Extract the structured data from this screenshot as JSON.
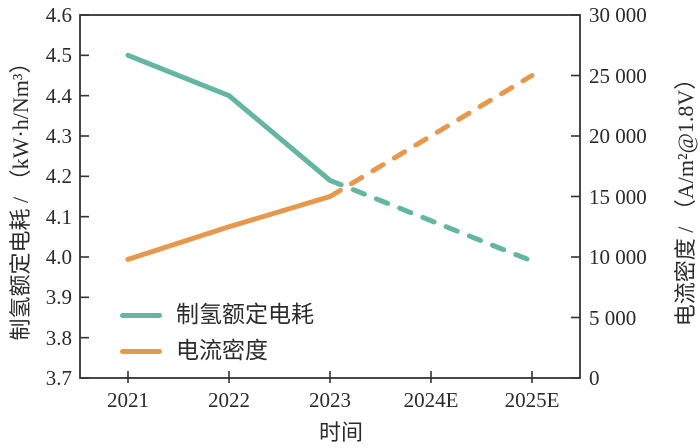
{
  "chart_data": {
    "type": "line",
    "title": "",
    "xlabel": "时间",
    "grid": false,
    "x_categories": [
      "2021",
      "2022",
      "2023",
      "2024E",
      "2025E"
    ],
    "series": [
      {
        "name": "制氢额定电耗",
        "axis": "left",
        "color": "#64b5a2",
        "values": [
          4.5,
          4.4,
          4.19,
          4.09,
          3.99
        ],
        "forecast_dashed_from_index": 2
      },
      {
        "name": "电流密度",
        "axis": "right",
        "color": "#e6994d",
        "values": [
          9800,
          12500,
          15000,
          20000,
          25000
        ],
        "forecast_dashed_from_index": 2
      }
    ],
    "axes": {
      "left": {
        "label": "制氢额定电耗 / （kW·h/Nm³）",
        "min": 3.7,
        "max": 4.6,
        "tick_step": 0.1,
        "tick_labels": [
          "3.7",
          "3.8",
          "3.9",
          "4.0",
          "4.1",
          "4.2",
          "4.3",
          "4.4",
          "4.5",
          "4.6"
        ]
      },
      "right": {
        "label": "电流密度 / （A/m²@1.8V）",
        "min": 0,
        "max": 30000,
        "tick_step": 5000,
        "tick_labels": [
          "0",
          "5 000",
          "10 000",
          "15 000",
          "20 000",
          "25 000",
          "30 000"
        ]
      },
      "x": {
        "label": "时间",
        "tick_labels": [
          "2021",
          "2022",
          "2023",
          "2024E",
          "2025E"
        ]
      }
    },
    "legend": {
      "position": "inside-bottom-left",
      "items": [
        {
          "label": "制氢额定电耗",
          "color": "#64b5a2"
        },
        {
          "label": "电流密度",
          "color": "#e6994d"
        }
      ]
    }
  },
  "colors": {
    "background": "#ffffff",
    "axis": "#333333",
    "text": "#2b2b2b",
    "series_consumption": "#64b5a2",
    "series_current_density": "#e6994d"
  }
}
